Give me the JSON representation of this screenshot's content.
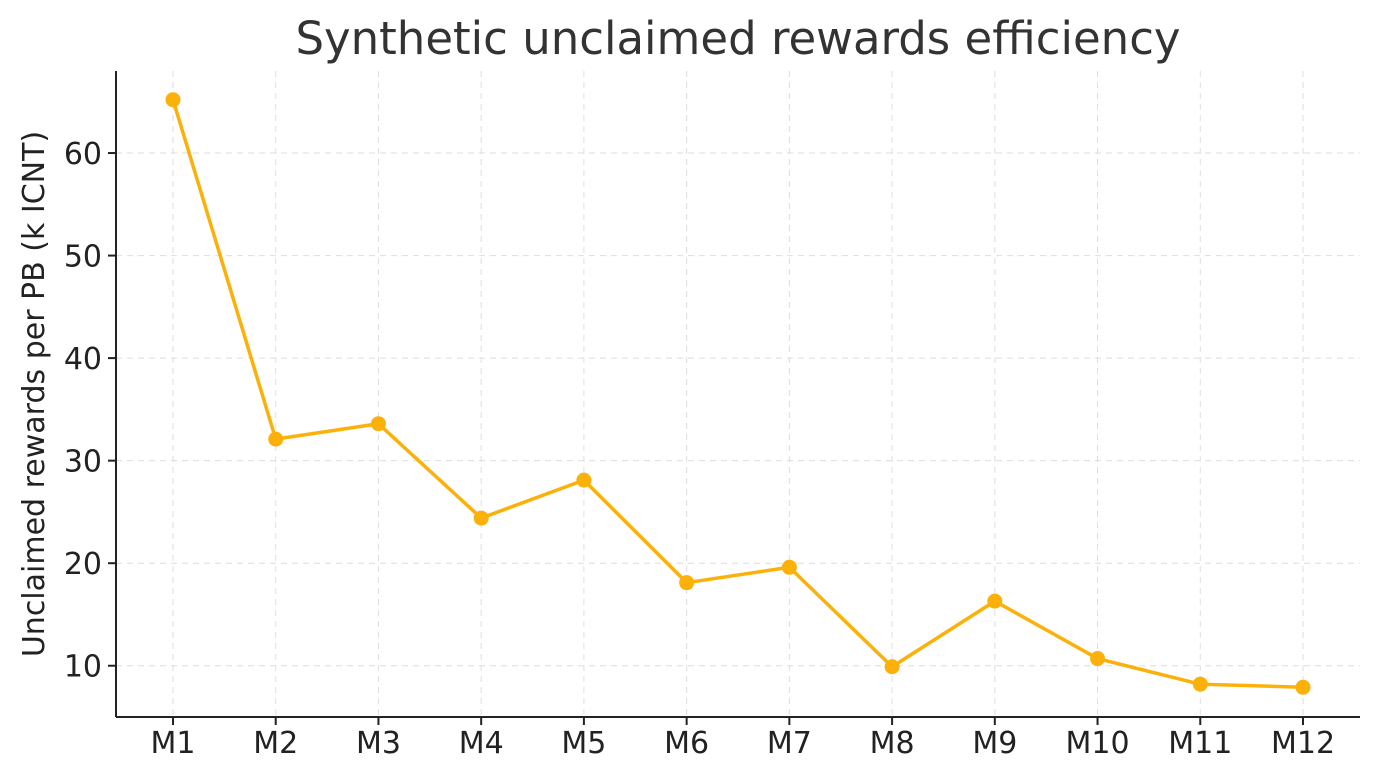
{
  "chart_data": {
    "type": "line",
    "title": "Synthetic unclaimed rewards efficiency",
    "xlabel": "",
    "ylabel": "Unclaimed rewards per PB (k ICNT)",
    "categories": [
      "M1",
      "M2",
      "M3",
      "M4",
      "M5",
      "M6",
      "M7",
      "M8",
      "M9",
      "M10",
      "M11",
      "M12"
    ],
    "series": [
      {
        "values": [
          65.2,
          32.1,
          33.6,
          24.4,
          28.1,
          18.1,
          19.6,
          9.9,
          16.3,
          10.7,
          8.2,
          7.9
        ]
      }
    ],
    "ylim": [
      5,
      68
    ],
    "yticks": [
      10,
      20,
      30,
      40,
      50,
      60
    ],
    "grid": true,
    "legend": "none",
    "colors": {
      "line": "#fbb10a",
      "marker": "#fbb10a",
      "axis": "#222222",
      "grid": "#dedede",
      "title": "#333333"
    }
  }
}
